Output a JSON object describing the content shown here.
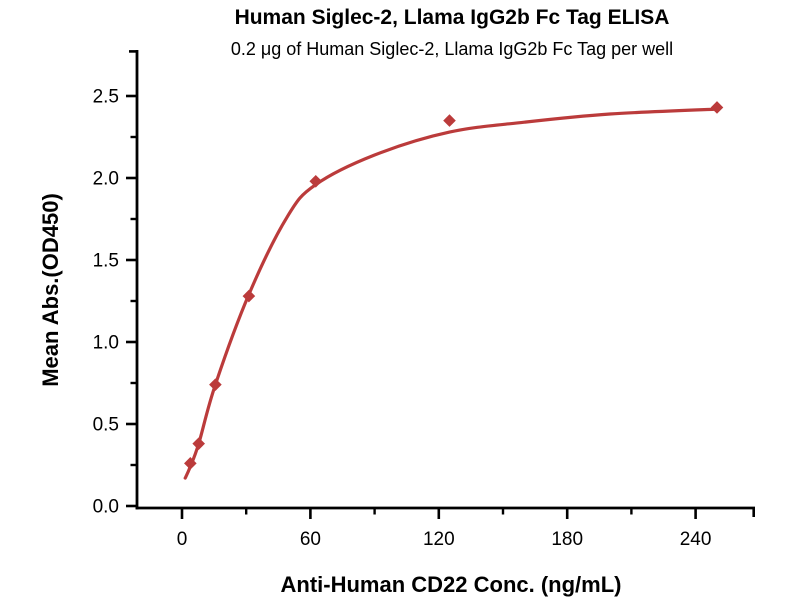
{
  "page": {
    "background_color": "#ffffff",
    "text_color": "#000000"
  },
  "chart_data": {
    "type": "scatter",
    "title": "Human Siglec-2, Llama IgG2b Fc Tag ELISA",
    "subtitle": "0.2 μg of Human Siglec-2, Llama IgG2b Fc Tag per well",
    "xlabel": "Anti-Human CD22 Conc. (ng/mL)",
    "ylabel": "Mean Abs.(OD450)",
    "x_major_ticks": [
      0,
      60,
      120,
      180,
      240
    ],
    "x_minor_ticks": [
      30,
      90,
      150,
      210
    ],
    "y_major_ticks": [
      0.0,
      0.5,
      1.0,
      1.5,
      2.0,
      2.5
    ],
    "y_minor_ticks": [
      0.25,
      0.75,
      1.25,
      1.75,
      2.25
    ],
    "xlim": [
      -21,
      268
    ],
    "ylim": [
      0,
      2.78
    ],
    "grid": false,
    "legend": null,
    "marker_shape": "diamond",
    "series_color": "#BB3B3B",
    "axis_color": "#000000",
    "points": {
      "x": [
        3.9,
        7.8,
        15.6,
        31.25,
        62.5,
        125,
        250
      ],
      "y": [
        0.26,
        0.38,
        0.74,
        1.28,
        1.98,
        2.35,
        2.43
      ]
    },
    "fit_curve_knots": [
      [
        1.5,
        0.17
      ],
      [
        3.9,
        0.24
      ],
      [
        7.8,
        0.38
      ],
      [
        15.6,
        0.74
      ],
      [
        31.25,
        1.29
      ],
      [
        49,
        1.76
      ],
      [
        62.5,
        1.96
      ],
      [
        90,
        2.14
      ],
      [
        125,
        2.28
      ],
      [
        160,
        2.34
      ],
      [
        200,
        2.39
      ],
      [
        250,
        2.42
      ]
    ]
  }
}
